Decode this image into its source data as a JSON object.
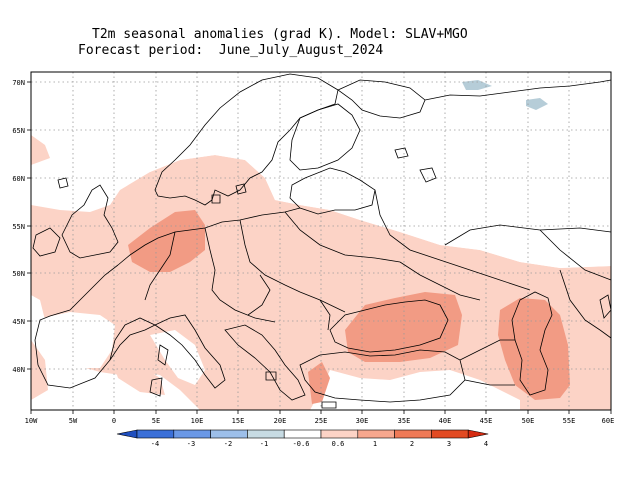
{
  "title": {
    "line1": "T2m seasonal anomalies (grad K). Model: SLAV+MGO",
    "line2": "Forecast period:  June_July_August_2024"
  },
  "map": {
    "lon_range": [
      -10,
      60
    ],
    "lat_range": [
      35,
      72
    ],
    "lon_ticks": [
      "10W",
      "5W",
      "0",
      "5E",
      "10E",
      "15E",
      "20E",
      "25E",
      "30E",
      "35E",
      "40E",
      "45E",
      "50E",
      "55E",
      "60E"
    ],
    "lat_ticks": [
      "70N",
      "65N",
      "60N",
      "55N",
      "50N",
      "45N",
      "40N"
    ],
    "grid": true
  },
  "colorbar": {
    "labels": [
      "-4",
      "-3",
      "-2",
      "-1",
      "-0.6",
      "0.6",
      "1",
      "2",
      "3",
      "4"
    ],
    "colors": [
      "#1f4fbf",
      "#3a6fd8",
      "#6a98e6",
      "#9dbfe9",
      "#c7dbe3",
      "#ffffff",
      "#fcd3c6",
      "#f7a78e",
      "#ef7a57",
      "#e24a22",
      "#d42a10"
    ]
  },
  "colors": {
    "anomaly_0_6_to_1": "#fcd3c6",
    "anomaly_1_to_2": "#f29b84",
    "anomaly_neg_0_6_to_neg_1": "#b6cdd8"
  }
}
